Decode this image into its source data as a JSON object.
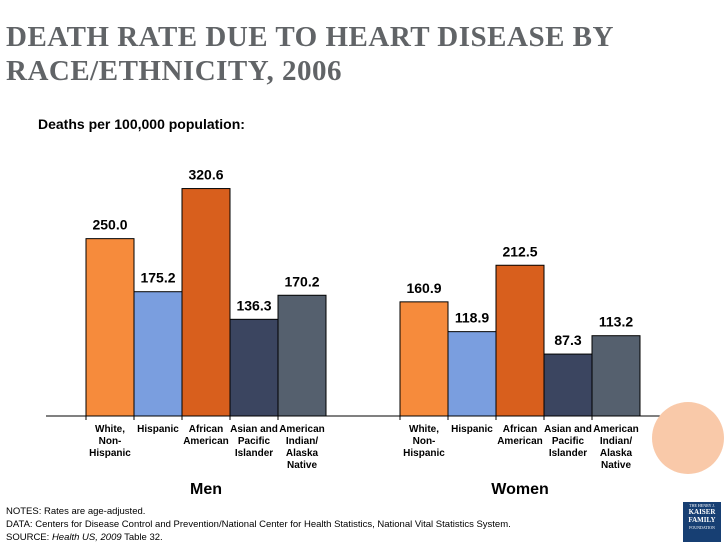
{
  "title": "DEATH RATE DUE TO HEART DISEASE BY RACE/ETHNICITY, 2006",
  "subtitle": "Deaths per 100,000 population:",
  "chart_data": {
    "type": "bar",
    "ylabel": "Deaths per 100,000 population",
    "ylim": [
      0,
      350
    ],
    "categories": [
      "White, Non-Hispanic",
      "Hispanic",
      "African American",
      "Asian and Pacific Islander",
      "American Indian/ Alaska Native"
    ],
    "category_label_lines": [
      [
        "White,",
        "Non-",
        "Hispanic"
      ],
      [
        "Hispanic"
      ],
      [
        "African",
        "American"
      ],
      [
        "Asian and",
        "Pacific",
        "Islander"
      ],
      [
        "American",
        "Indian/",
        "Alaska",
        "Native"
      ]
    ],
    "colors": [
      "#f68b3c",
      "#7a9edf",
      "#d85f1d",
      "#3b4560",
      "#55606e"
    ],
    "groups": [
      {
        "name": "Men",
        "values": [
          250.0,
          175.2,
          320.6,
          136.3,
          170.2
        ]
      },
      {
        "name": "Women",
        "values": [
          160.9,
          118.9,
          212.5,
          87.3,
          113.2
        ]
      }
    ]
  },
  "notes": {
    "line1": "NOTES: Rates are age-adjusted.",
    "line2": "DATA: Centers for Disease Control and Prevention/National Center for Health Statistics, National Vital Statistics System.",
    "source_prefix": "SOURCE: ",
    "source_italic": "Health US, 2009",
    "source_suffix": " Table 32."
  },
  "logo": {
    "top": "THE HENRY J.",
    "line1": "KAISER",
    "line2": "FAMILY",
    "bottom": "FOUNDATION"
  }
}
